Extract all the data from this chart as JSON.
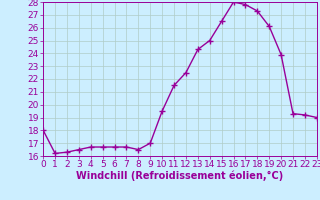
{
  "x": [
    0,
    1,
    2,
    3,
    4,
    5,
    6,
    7,
    8,
    9,
    10,
    11,
    12,
    13,
    14,
    15,
    16,
    17,
    18,
    19,
    20,
    21,
    22,
    23
  ],
  "y": [
    18,
    16.2,
    16.3,
    16.5,
    16.7,
    16.7,
    16.7,
    16.7,
    16.5,
    17.0,
    19.5,
    21.5,
    22.5,
    24.3,
    25.0,
    26.5,
    28.0,
    27.8,
    27.3,
    26.1,
    23.9,
    19.3,
    19.2,
    19.0
  ],
  "line_color": "#990099",
  "marker_color": "#990099",
  "bg_color": "#cceeff",
  "grid_color": "#b0ccc8",
  "xlabel": "Windchill (Refroidissement éolien,°C)",
  "ylim_min": 16,
  "ylim_max": 28,
  "xlim_min": 0,
  "xlim_max": 23,
  "yticks": [
    16,
    17,
    18,
    19,
    20,
    21,
    22,
    23,
    24,
    25,
    26,
    27,
    28
  ],
  "xticks": [
    0,
    1,
    2,
    3,
    4,
    5,
    6,
    7,
    8,
    9,
    10,
    11,
    12,
    13,
    14,
    15,
    16,
    17,
    18,
    19,
    20,
    21,
    22,
    23
  ],
  "tick_fontsize": 6.5,
  "label_fontsize": 7.0,
  "line_width": 1.0,
  "marker_size": 4,
  "marker_ew": 1.0
}
